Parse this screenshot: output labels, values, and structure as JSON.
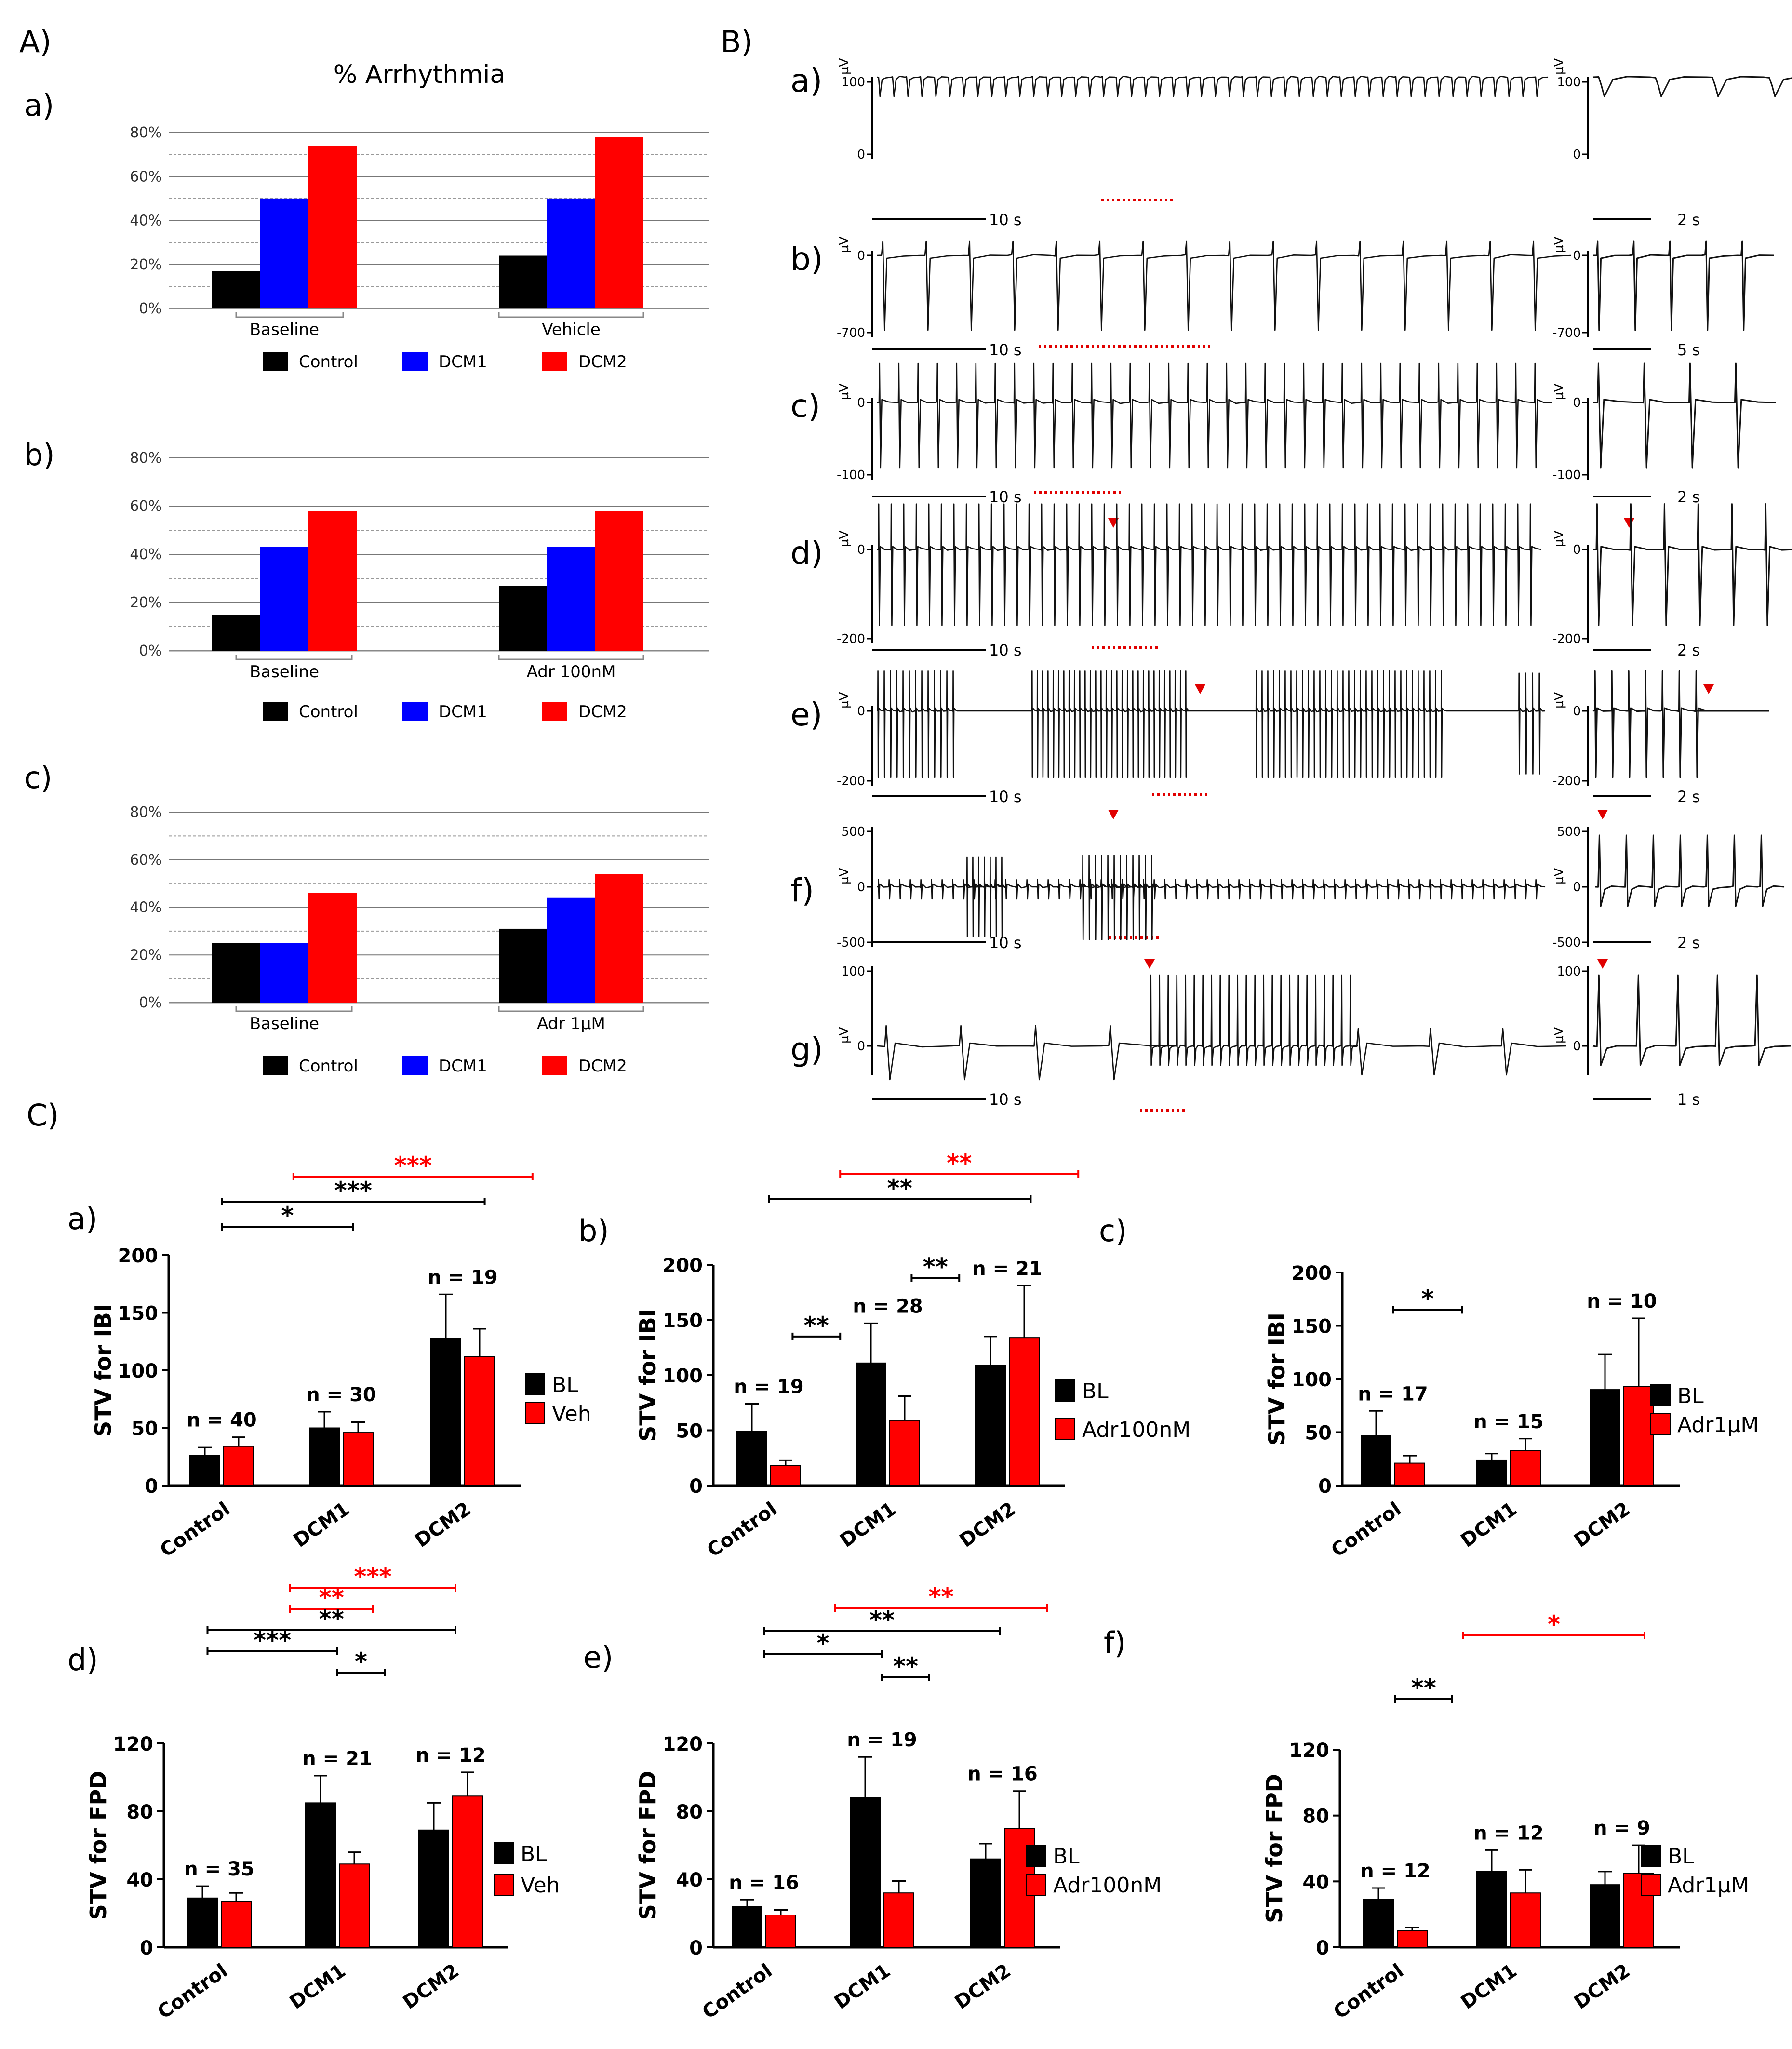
{
  "panels": {
    "A": "A)",
    "B": "B)",
    "C": "C)"
  },
  "legend_groups": {
    "control": "Control",
    "dcm1": "DCM1",
    "dcm2": "DCM2"
  },
  "colors": {
    "control": "#000000",
    "dcm1": "#0000ff",
    "dcm2": "#ff0000",
    "bl": "#000000",
    "treat": "#ff0000",
    "sig_red": "#ff0000",
    "sig_black": "#000000",
    "marker": "#e00000"
  },
  "chart_data": [
    {
      "id": "Aa",
      "type": "bar",
      "label": "a)",
      "title": "% Arrhythmia",
      "categories": [
        "Baseline",
        "Vehicle"
      ],
      "series": [
        {
          "name": "Control",
          "values": [
            17,
            24
          ]
        },
        {
          "name": "DCM1",
          "values": [
            50,
            50
          ]
        },
        {
          "name": "DCM2",
          "values": [
            74,
            78
          ]
        }
      ],
      "yticks": [
        "0%",
        "20%",
        "40%",
        "60%",
        "80%"
      ],
      "ylim": [
        0,
        80
      ]
    },
    {
      "id": "Ab",
      "type": "bar",
      "label": "b)",
      "categories": [
        "Baseline",
        "Adr 100nM"
      ],
      "series": [
        {
          "name": "Control",
          "values": [
            15,
            27
          ]
        },
        {
          "name": "DCM1",
          "values": [
            43,
            43
          ]
        },
        {
          "name": "DCM2",
          "values": [
            58,
            58
          ]
        }
      ],
      "yticks": [
        "0%",
        "20%",
        "40%",
        "60%",
        "80%"
      ],
      "ylim": [
        0,
        80
      ]
    },
    {
      "id": "Ac",
      "type": "bar",
      "label": "c)",
      "categories": [
        "Baseline",
        "Adr 1μM"
      ],
      "series": [
        {
          "name": "Control",
          "values": [
            25,
            31
          ]
        },
        {
          "name": "DCM1",
          "values": [
            25,
            44
          ]
        },
        {
          "name": "DCM2",
          "values": [
            46,
            54
          ]
        }
      ],
      "yticks": [
        "0%",
        "20%",
        "40%",
        "60%",
        "80%"
      ],
      "ylim": [
        0,
        80
      ]
    },
    {
      "id": "Ca",
      "type": "bar",
      "label": "a)",
      "ylabel": "STV for IBI",
      "categories": [
        "Control",
        "DCM1",
        "DCM2"
      ],
      "series": [
        {
          "name": "BL",
          "values": [
            26,
            50,
            128
          ],
          "err": [
            7,
            14,
            38
          ]
        },
        {
          "name": "Veh",
          "values": [
            34,
            46,
            112
          ],
          "err": [
            8,
            9,
            24
          ]
        }
      ],
      "n_labels": [
        "n = 40",
        "n = 30",
        "n = 19"
      ],
      "yticks": [
        "0",
        "50",
        "100",
        "150",
        "200"
      ],
      "ylim": [
        0,
        200
      ],
      "significance": [
        {
          "text": "***",
          "color": "red",
          "from": 0.6,
          "to": 2.6,
          "level": 3
        },
        {
          "text": "***",
          "color": "black",
          "from": 0,
          "to": 2.2,
          "level": 2
        },
        {
          "text": "*",
          "color": "black",
          "from": 0,
          "to": 1.1,
          "level": 1
        }
      ]
    },
    {
      "id": "Cb",
      "type": "bar",
      "label": "b)",
      "ylabel": "STV for IBI",
      "categories": [
        "Control",
        "DCM1",
        "DCM2"
      ],
      "series": [
        {
          "name": "BL",
          "values": [
            49,
            111,
            109
          ],
          "err": [
            25,
            36,
            26
          ]
        },
        {
          "name": "Adr100nM",
          "values": [
            18,
            59,
            134
          ],
          "err": [
            5,
            22,
            47
          ]
        }
      ],
      "n_labels": [
        "n = 19",
        "n = 28",
        "n = 21"
      ],
      "yticks": [
        "0",
        "50",
        "100",
        "150",
        "200"
      ],
      "ylim": [
        0,
        200
      ],
      "significance": [
        {
          "text": "**",
          "color": "red",
          "from": 0.6,
          "to": 2.6,
          "level": 3
        },
        {
          "text": "**",
          "color": "black",
          "from": 0,
          "to": 2.2,
          "level": 2
        },
        {
          "text": "**",
          "color": "black",
          "from": 0.2,
          "to": 0.6,
          "value": 135
        },
        {
          "text": "**",
          "color": "black",
          "from": 1.2,
          "to": 1.6,
          "value": 188
        }
      ]
    },
    {
      "id": "Cc",
      "type": "bar",
      "label": "c)",
      "ylabel": "STV for IBI",
      "categories": [
        "Control",
        "DCM1",
        "DCM2"
      ],
      "series": [
        {
          "name": "BL",
          "values": [
            47,
            24,
            90
          ],
          "err": [
            23,
            6,
            33
          ]
        },
        {
          "name": "Adr1μM",
          "values": [
            21,
            33,
            93
          ],
          "err": [
            7,
            11,
            64
          ]
        }
      ],
      "n_labels": [
        "n = 17",
        "n = 15",
        "n = 10"
      ],
      "yticks": [
        "0",
        "50",
        "100",
        "150",
        "200"
      ],
      "ylim": [
        0,
        200
      ],
      "significance": [
        {
          "text": "*",
          "color": "black",
          "from": 0,
          "to": 0.6,
          "value": 165
        }
      ]
    },
    {
      "id": "Cd",
      "type": "bar",
      "label": "d)",
      "ylabel": "STV for FPD",
      "categories": [
        "Control",
        "DCM1",
        "DCM2"
      ],
      "series": [
        {
          "name": "BL",
          "values": [
            29,
            85,
            69
          ],
          "err": [
            7,
            16,
            16
          ]
        },
        {
          "name": "Veh",
          "values": [
            27,
            49,
            89
          ],
          "err": [
            5,
            7,
            14
          ]
        }
      ],
      "n_labels": [
        "n = 35",
        "n = 21",
        "n = 12"
      ],
      "yticks": [
        "0",
        "40",
        "80",
        "120"
      ],
      "ylim": [
        0,
        120
      ],
      "significance": [
        {
          "text": "***",
          "color": "red",
          "from": 0.6,
          "to": 2.0,
          "level": 5
        },
        {
          "text": "**",
          "color": "red",
          "from": 0.6,
          "to": 1.3,
          "level": 4
        },
        {
          "text": "**",
          "color": "black",
          "from": -0.1,
          "to": 2.0,
          "level": 3
        },
        {
          "text": "***",
          "color": "black",
          "from": -0.1,
          "to": 1.0,
          "level": 2
        },
        {
          "text": "*",
          "color": "black",
          "from": 1.0,
          "to": 1.4,
          "level": 1
        }
      ]
    },
    {
      "id": "Ce",
      "type": "bar",
      "label": "e)",
      "ylabel": "STV for FPD",
      "categories": [
        "Control",
        "DCM1",
        "DCM2"
      ],
      "series": [
        {
          "name": "BL",
          "values": [
            24,
            88,
            52
          ],
          "err": [
            4,
            24,
            9
          ]
        },
        {
          "name": "Adr100nM",
          "values": [
            19,
            32,
            70
          ],
          "err": [
            3,
            7,
            22
          ]
        }
      ],
      "n_labels": [
        "n = 16",
        "n = 19",
        "n = 16"
      ],
      "yticks": [
        "0",
        "40",
        "80",
        "120"
      ],
      "ylim": [
        0,
        120
      ],
      "significance": [
        {
          "text": "**",
          "color": "red",
          "from": 0.6,
          "to": 2.4,
          "level": 4
        },
        {
          "text": "**",
          "color": "black",
          "from": 0,
          "to": 2.0,
          "level": 3
        },
        {
          "text": "*",
          "color": "black",
          "from": 0,
          "to": 1.0,
          "level": 2
        },
        {
          "text": "**",
          "color": "black",
          "from": 1.0,
          "to": 1.4,
          "level": 1
        }
      ]
    },
    {
      "id": "Cf",
      "type": "bar",
      "label": "f)",
      "ylabel": "STV for FPD",
      "categories": [
        "Control",
        "DCM1",
        "DCM2"
      ],
      "series": [
        {
          "name": "BL",
          "values": [
            29,
            46,
            38
          ],
          "err": [
            7,
            13,
            8
          ]
        },
        {
          "name": "Adr1μM",
          "values": [
            10,
            33,
            45
          ],
          "err": [
            2,
            14,
            17
          ]
        }
      ],
      "n_labels": [
        "n = 12",
        "n = 12",
        "n = 9"
      ],
      "yticks": [
        "0",
        "40",
        "80",
        "120"
      ],
      "ylim": [
        0,
        120
      ],
      "significance": [
        {
          "text": "*",
          "color": "red",
          "from": 0.6,
          "to": 2.2,
          "level": 3
        },
        {
          "text": "**",
          "color": "black",
          "from": 0,
          "to": 0.5,
          "level": 1
        }
      ]
    }
  ],
  "traces": [
    {
      "label": "a)",
      "unit": "µV",
      "ticks": [
        "100",
        "0"
      ],
      "scale_main": "10 s",
      "scale_zoom": "2 s"
    },
    {
      "label": "b)",
      "unit": "µV",
      "ticks": [
        "0",
        "-700"
      ],
      "scale_main": "10 s",
      "scale_zoom": "5 s"
    },
    {
      "label": "c)",
      "unit": "µV",
      "ticks": [
        "0",
        "-100"
      ],
      "scale_main": "10 s",
      "scale_zoom": "2 s"
    },
    {
      "label": "d)",
      "unit": "µV",
      "ticks": [
        "0",
        "-200"
      ],
      "scale_main": "10 s",
      "scale_zoom": "2 s"
    },
    {
      "label": "e)",
      "unit": "µV",
      "ticks": [
        "0",
        "-200"
      ],
      "scale_main": "10 s",
      "scale_zoom": "2 s"
    },
    {
      "label": "f)",
      "unit": "µV",
      "ticks": [
        "500",
        "0",
        "-500"
      ],
      "scale_main": "10 s",
      "scale_zoom": "2 s"
    },
    {
      "label": "g)",
      "unit": "µV",
      "ticks": [
        "100",
        "0"
      ],
      "scale_main": "10 s",
      "scale_zoom": "1 s"
    }
  ]
}
